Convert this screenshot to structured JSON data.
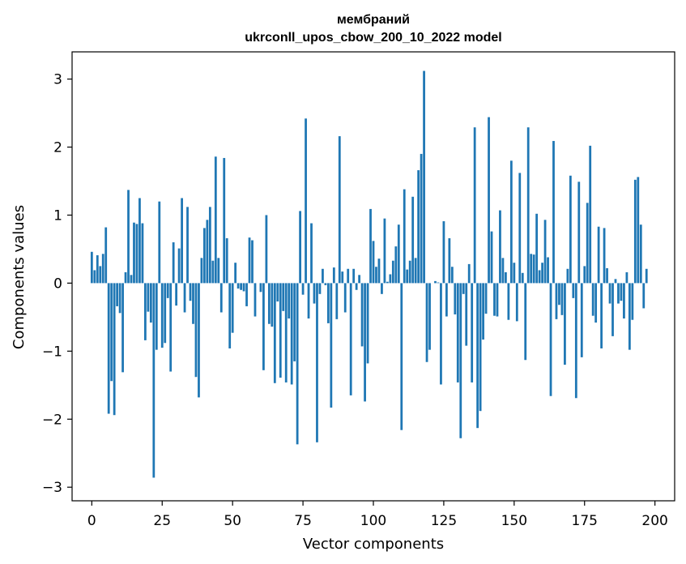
{
  "chart_data": {
    "type": "bar",
    "title": "мембраний",
    "subtitle": "ukrconll_upos_cbow_200_10_2022 model",
    "xlabel": "Vector components",
    "ylabel": "Components values",
    "xlim": [
      -7,
      207
    ],
    "ylim": [
      -3.2,
      3.4
    ],
    "x_ticks": [
      0,
      25,
      50,
      75,
      100,
      125,
      150,
      175,
      200
    ],
    "y_ticks": [
      -3,
      -2,
      -1,
      0,
      1,
      2,
      3
    ],
    "y_tick_labels": [
      "−3",
      "−2",
      "−1",
      "0",
      "1",
      "2",
      "3"
    ],
    "grid": false,
    "bar_color": "#1f77b4",
    "values": [
      0.46,
      0.19,
      0.41,
      0.25,
      0.43,
      0.82,
      -1.92,
      -1.44,
      -1.94,
      -0.34,
      -0.44,
      -1.31,
      0.16,
      1.37,
      0.12,
      0.89,
      0.87,
      1.25,
      0.88,
      -0.84,
      -0.42,
      -0.58,
      -2.86,
      -0.98,
      1.2,
      -0.95,
      -0.88,
      -0.22,
      -1.3,
      0.6,
      -0.33,
      0.51,
      1.25,
      -0.43,
      1.12,
      -0.26,
      -0.6,
      -1.38,
      -1.68,
      0.37,
      0.81,
      0.93,
      1.12,
      0.33,
      1.86,
      0.37,
      -0.43,
      1.84,
      0.66,
      -0.96,
      -0.73,
      0.3,
      -0.08,
      -0.1,
      -0.12,
      -0.34,
      0.67,
      0.63,
      -0.49,
      0.0,
      -0.13,
      -1.28,
      1.0,
      -0.6,
      -0.64,
      -1.47,
      -0.27,
      -1.39,
      -0.41,
      -1.46,
      -0.52,
      -1.49,
      -1.15,
      -2.37,
      1.06,
      -0.17,
      2.42,
      -0.52,
      0.88,
      -0.3,
      -2.34,
      -0.16,
      0.21,
      -0.03,
      -0.59,
      -1.83,
      0.23,
      -0.53,
      2.16,
      0.17,
      -0.43,
      0.21,
      -1.65,
      0.21,
      -0.1,
      0.12,
      -0.93,
      -1.74,
      -1.18,
      1.09,
      0.62,
      0.24,
      0.36,
      -0.16,
      0.95,
      0.02,
      0.13,
      0.33,
      0.54,
      0.86,
      -2.16,
      1.38,
      0.2,
      0.33,
      1.27,
      0.37,
      1.66,
      1.9,
      3.12,
      -1.16,
      -0.98,
      0.0,
      0.03,
      0.01,
      -1.49,
      0.91,
      -0.49,
      0.66,
      0.24,
      -0.46,
      -1.46,
      -2.28,
      -0.16,
      -0.92,
      0.28,
      -1.46,
      2.29,
      -2.13,
      -1.88,
      -0.83,
      -0.45,
      2.44,
      0.76,
      -0.48,
      -0.49,
      1.07,
      0.37,
      0.16,
      -0.54,
      1.8,
      0.3,
      -0.56,
      1.62,
      0.15,
      -1.13,
      2.29,
      0.43,
      0.42,
      1.02,
      0.19,
      0.3,
      0.93,
      0.38,
      -1.66,
      2.09,
      -0.53,
      -0.32,
      -0.47,
      -1.2,
      0.21,
      1.58,
      -0.22,
      -1.69,
      1.49,
      -1.09,
      0.25,
      1.18,
      2.02,
      -0.48,
      -0.58,
      0.83,
      -0.96,
      0.81,
      0.22,
      -0.3,
      -0.78,
      0.06,
      -0.3,
      -0.26,
      -0.52,
      0.16,
      -0.98,
      -0.54,
      1.52,
      1.56,
      0.86,
      -0.37,
      0.21
    ]
  }
}
